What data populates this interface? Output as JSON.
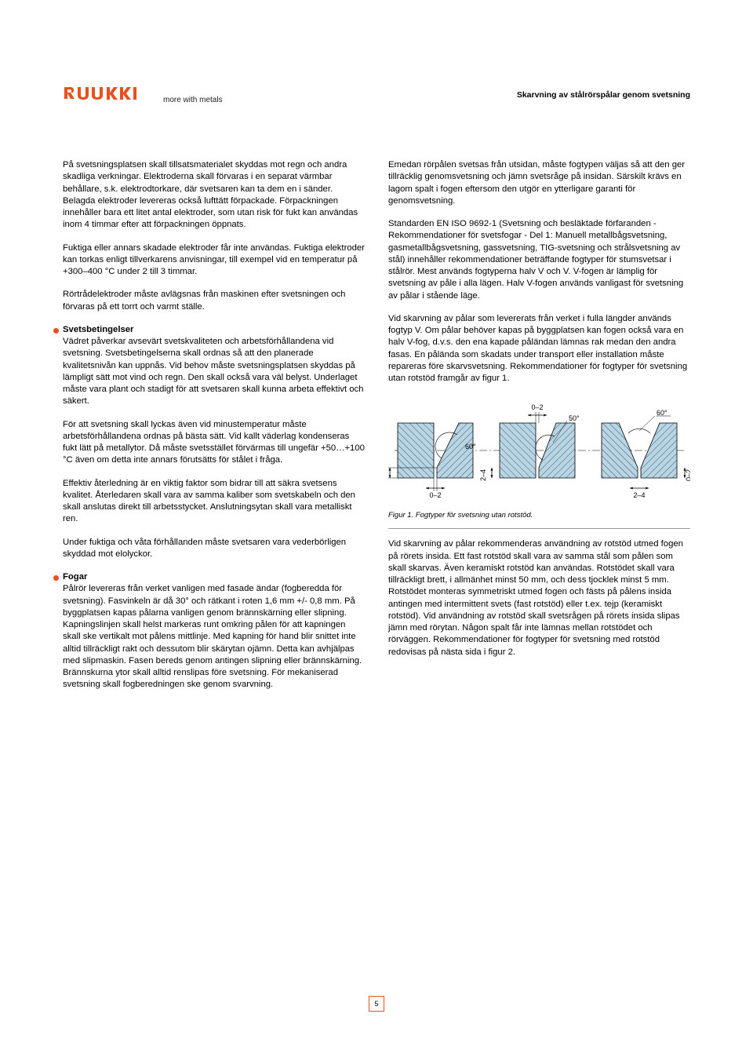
{
  "brand": {
    "tagline": "more with metals",
    "brand_color": "#e9501e"
  },
  "doc_title": "Skarvning av stålrörspålar genom svetsning",
  "left": {
    "p1": "På svetsningsplatsen skall tillsatsmaterialet skyddas mot regn och andra skadliga verkningar. Elektroderna skall förvaras i en separat värmbar behållare, s.k. elektrodtorkare, där svetsaren kan ta dem en i sänder. Belagda elektroder levereras också lufttätt förpackade. Förpackningen innehåller bara ett litet antal elektroder, som utan risk för fukt kan användas inom 4 timmar efter att förpackningen öppnats.",
    "p2": "Fuktiga eller annars skadade elektroder får inte användas. Fuktiga elektroder kan torkas enligt tillverkarens anvisningar, till exempel vid en temperatur på +300–400 °C under 2 till 3 timmar.",
    "p3": "Rörtrådelektroder måste avlägsnas från maskinen efter svetsningen och förvaras på ett torrt och varmt ställe.",
    "sec_svets_title": "Svetsbetingelser",
    "sec_svets_body": "Vädret påverkar avsevärt svetskvaliteten och arbetsförhållandena vid svetsning. Svetsbetingelserna skall ordnas så att den planerade kvalitetsnivån kan uppnås. Vid behov måste svetsningsplatsen skyddas på lämpligt sätt mot vind och regn. Den skall också vara väl belyst. Underlaget måste vara plant och stadigt för att svetsaren skall kunna arbeta effektivt och säkert.",
    "p4": "För att svetsning skall lyckas även vid minustemperatur måste arbetsförhållandena ordnas på bästa sätt. Vid kallt väderlag kondenseras fukt lätt på metallytor. Då måste svetsstället förvärmas till ungefär +50…+100 °C även om detta inte annars förutsätts för stålet i fråga.",
    "p5": "Effektiv återledning är en viktig faktor som bidrar till att säkra svetsens kvalitet. Återledaren skall vara av samma kaliber som svetskabeln och den skall anslutas direkt till arbetsstycket. Anslutningsytan skall vara metalliskt ren.",
    "p6": "Under fuktiga och våta förhållanden måste svetsaren vara vederbörligen skyddad mot elolyckor.",
    "sec_fogar_title": "Fogar",
    "sec_fogar_body": "Pålrör levereras från verket vanligen med fasade ändar (fogberedda för svetsning). Fasvinkeln är då 30° och rätkant i roten 1,6 mm +/- 0,8 mm. På byggplatsen kapas pålarna vanligen genom brännskärning eller slipning. Kapningslinjen skall helst markeras runt omkring pålen för att kapningen skall ske vertikalt mot pålens mittlinje. Med kapning för hand blir snittet inte alltid tillräckligt rakt och dessutom blir skärytan ojämn. Detta kan avhjälpas med slipmaskin. Fasen bereds genom antingen slipning eller brännskärning. Brännskurna ytor skall alltid renslipas före svetsning. För mekaniserad svetsning skall fogberedningen ske genom svarvning."
  },
  "right": {
    "p1": "Emedan rörpålen svetsas från utsidan, måste fogtypen väljas så att den ger tillräcklig genomsvetsning och jämn svetsråge på insidan. Särskilt krävs en lagom spalt i fogen eftersom den utgör en ytterligare garanti för genomsvetsning.",
    "p2": "Standarden EN ISO 9692-1 (Svetsning och besläktade förfaranden - Rekommendationer för svetsfogar - Del 1: Manuell metallbågsvetsning, gasmetallbågsvetsning, gassvetsning, TIG-svetsning och strålsvetsning av stål) innehåller rekommendationer beträffande fogtyper för stumsvetsar i stålrör. Mest används fogtyperna halv V och V. V-fogen är lämplig för svetsning av påle i alla lägen. Halv V-fogen används vanligast för svetsning av pålar i stående läge.",
    "p3": "Vid skarvning av pålar som levererats från verket i fulla längder används fogtyp V. Om pålar behöver kapas på byggplatsen kan fogen också vara en halv V-fog, d.v.s. den ena kapade påländan lämnas rak medan den andra fasas. En pålända som skadats under transport eller installation måste repareras före skarvsvetsning. Rekommendationer för fogtyper för svetsning utan rotstöd framgår av figur 1.",
    "fig_caption": "Figur 1.  Fogtyper för svetsning utan rotstöd.",
    "p4": "Vid skarvning av pålar rekommenderas användning av rotstöd utmed fogen på rörets insida. Ett fast rotstöd skall vara av samma stål som pålen som skall skarvas. Även keramiskt rotstöd kan användas. Rotstödet skall vara tillräckligt brett, i allmänhet minst 50 mm, och dess tjocklek minst 5 mm. Rotstödet monteras symmetriskt utmed fogen och fästs på pålens insida antingen med intermittent svets (fast rotstöd) eller t.ex. tejp (keramiskt rotstöd). Vid användning av rotstöd skall svetsrågen på rörets insida slipas jämn med rörytan. Någon spalt får inte lämnas mellan rotstödet och rörväggen. Rekommendationer för fogtyper för svetsning med rotstöd redovisas på nästa sida i figur 2."
  },
  "figure1": {
    "steel_fill": "#b7d5e5",
    "line_color": "#000000",
    "hatch_color": "#000000",
    "labels": {
      "gap_0_2_a": "0–2",
      "root_2_4_a": "2–4",
      "angle_60_a": "60°",
      "gap_0_2_b": "0–2",
      "root_2_4_b": "2–4",
      "angle_50": "50°",
      "angle_60_c": "60°",
      "root_2_4_c": "2–4",
      "gap_0_2_c": "0–2"
    }
  },
  "page_number": "5"
}
